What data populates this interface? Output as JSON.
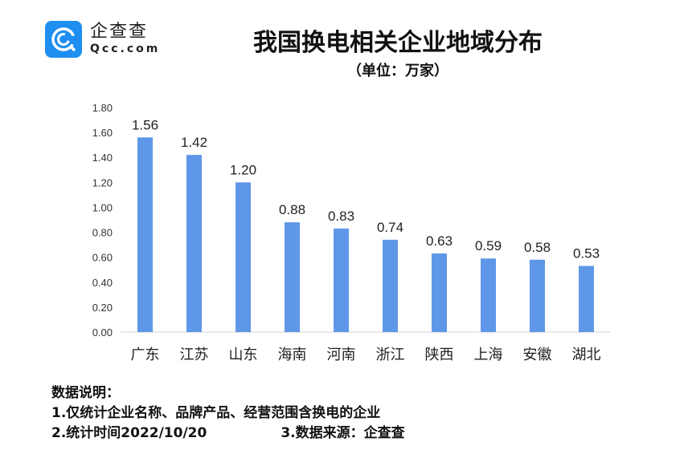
{
  "logo": {
    "cn": "企查查",
    "en": "Qcc.com",
    "color": "#1e8ff0"
  },
  "chart_data": {
    "type": "bar",
    "title": "我国换电相关企业地域分布",
    "subtitle": "（单位：万家）",
    "categories": [
      "广东",
      "江苏",
      "山东",
      "海南",
      "河南",
      "浙江",
      "陕西",
      "上海",
      "安徽",
      "湖北"
    ],
    "values": [
      1.56,
      1.42,
      1.2,
      0.88,
      0.83,
      0.74,
      0.63,
      0.59,
      0.58,
      0.53
    ],
    "data_labels": [
      "1.56",
      "1.42",
      "1.20",
      "0.88",
      "0.83",
      "0.74",
      "0.63",
      "0.59",
      "0.58",
      "0.53"
    ],
    "ylim": [
      0,
      1.8
    ],
    "yticks": [
      "0.00",
      "0.20",
      "0.40",
      "0.60",
      "0.80",
      "1.00",
      "1.20",
      "1.40",
      "1.60",
      "1.80"
    ],
    "grid": false,
    "bar_color": "#5f97e8"
  },
  "notes": {
    "heading": "数据说明：",
    "line1": "1.仅统计企业名称、品牌产品、经营范围含换电的企业",
    "line2": "2.统计时间2022/10/20",
    "line3": "3.数据来源：企查查"
  }
}
